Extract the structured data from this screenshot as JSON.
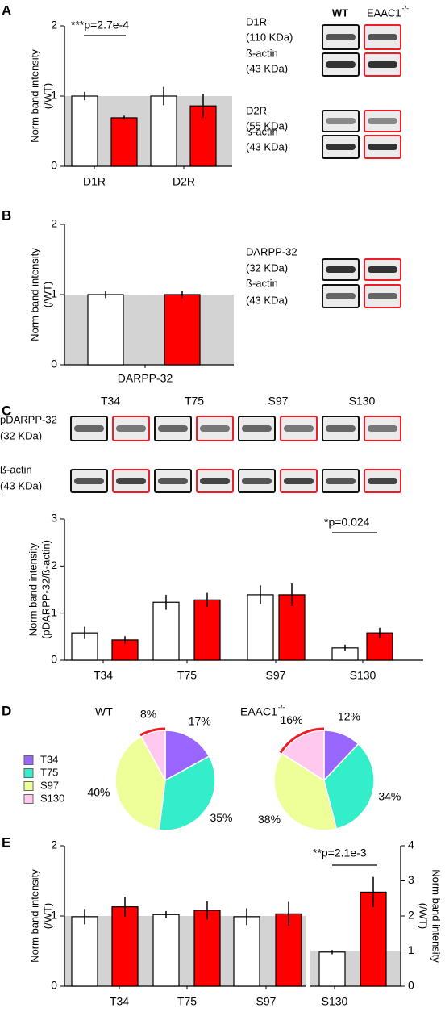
{
  "panel_labels": [
    "A",
    "B",
    "C",
    "D",
    "E"
  ],
  "blots": {
    "A": [
      [
        "D1R",
        "(110 KDa)"
      ],
      [
        "ß-actin",
        "(43 KDa)"
      ],
      [
        "D2R",
        "(55 KDa)"
      ],
      [
        "ß-actin",
        "(43 KDa)"
      ]
    ],
    "B": [
      [
        "DARPP-32",
        "(32 KDa)"
      ],
      [
        "ß-actin",
        "(43 KDa)"
      ]
    ],
    "C": {
      "columns": [
        "T34",
        "T75",
        "S97",
        "S130"
      ],
      "rows": [
        [
          "pDARPP-32",
          "(32 KDa)"
        ],
        [
          "ß-actin",
          "(43 KDa)"
        ]
      ]
    }
  },
  "chart_data": [
    {
      "type": "bar",
      "y_label": [
        "Norm band intensity",
        "(/WT)"
      ],
      "categories": [
        "D1R",
        "D2R"
      ],
      "series": [
        {
          "name": "WT",
          "color": "#ffffff",
          "values": [
            1.0,
            1.0
          ],
          "errors": [
            0.06,
            0.13
          ]
        },
        {
          "name": "EAAC1",
          "name_sup": "-/-",
          "color": "#ff0000",
          "values": [
            0.69,
            0.86
          ],
          "errors": [
            0.03,
            0.17
          ]
        }
      ],
      "ylim": [
        0,
        2
      ],
      "yticks": [
        0,
        1,
        2
      ],
      "reference": 1,
      "annotation": "***p=2.7e-4"
    },
    {
      "type": "bar",
      "y_label": [
        "Norm band intensity",
        "(/WT)"
      ],
      "categories": [
        "DARPP-32"
      ],
      "series": [
        {
          "color": "#ffffff",
          "values": [
            1.0
          ],
          "errors": [
            0.05
          ]
        },
        {
          "color": "#ff0000",
          "values": [
            1.0
          ],
          "errors": [
            0.05
          ]
        }
      ],
      "ylim": [
        0,
        2
      ],
      "yticks": [
        0,
        1,
        2
      ],
      "reference": 1
    },
    {
      "type": "bar",
      "y_label": [
        "Norm band intensity",
        "(pDARPP-32/ß-actin)"
      ],
      "categories": [
        "T34",
        "T75",
        "S97",
        "S130"
      ],
      "series": [
        {
          "color": "#ffffff",
          "values": [
            0.58,
            1.23,
            1.39,
            0.26
          ],
          "errors": [
            0.13,
            0.16,
            0.2,
            0.07
          ]
        },
        {
          "color": "#ff0000",
          "values": [
            0.43,
            1.28,
            1.39,
            0.58
          ],
          "errors": [
            0.08,
            0.15,
            0.24,
            0.11
          ]
        }
      ],
      "ylim": [
        0,
        3
      ],
      "yticks": [
        0,
        1,
        2,
        3
      ],
      "annotation": "*p=0.024"
    },
    {
      "type": "pie",
      "categories": [
        "T34",
        "T75",
        "S97",
        "S130"
      ],
      "colors": [
        "#9966ff",
        "#33eec8",
        "#eeff99",
        "#ffc8ee"
      ],
      "series": [
        {
          "name": "WT",
          "values": [
            17,
            35,
            40,
            8
          ],
          "value_labels": [
            "17%",
            "35%",
            "40%",
            "8%"
          ]
        },
        {
          "name": "EAAC1",
          "name_sup": "-/-",
          "values": [
            12,
            34,
            38,
            16
          ],
          "value_labels": [
            "12%",
            "34%",
            "38%",
            "16%"
          ]
        }
      ],
      "legend": true
    },
    {
      "type": "bar",
      "y_label": [
        "Norm band intensity",
        "(/WT)"
      ],
      "categories": [
        "T34",
        "T75",
        "S97"
      ],
      "series": [
        {
          "color": "#ffffff",
          "values": [
            0.99,
            1.02,
            0.99
          ],
          "errors": [
            0.11,
            0.05,
            0.12
          ]
        },
        {
          "color": "#ff0000",
          "values": [
            1.13,
            1.08,
            1.03
          ],
          "errors": [
            0.14,
            0.13,
            0.17
          ]
        }
      ],
      "ylim": [
        0,
        2
      ],
      "yticks": [
        0,
        1,
        2
      ],
      "reference": 1
    },
    {
      "type": "bar",
      "y_label": [
        "Norm band intensity",
        "(/WT)"
      ],
      "categories": [
        "S130"
      ],
      "series": [
        {
          "color": "#ffffff",
          "values": [
            0.97
          ],
          "errors": [
            0.06
          ]
        },
        {
          "color": "#ff0000",
          "values": [
            2.68
          ],
          "errors": [
            0.43
          ]
        }
      ],
      "ylim": [
        0,
        4
      ],
      "yticks": [
        0,
        1,
        2,
        3,
        4
      ],
      "reference": 1,
      "axis_side": "right",
      "annotation": "**p=2.1e-3"
    }
  ]
}
